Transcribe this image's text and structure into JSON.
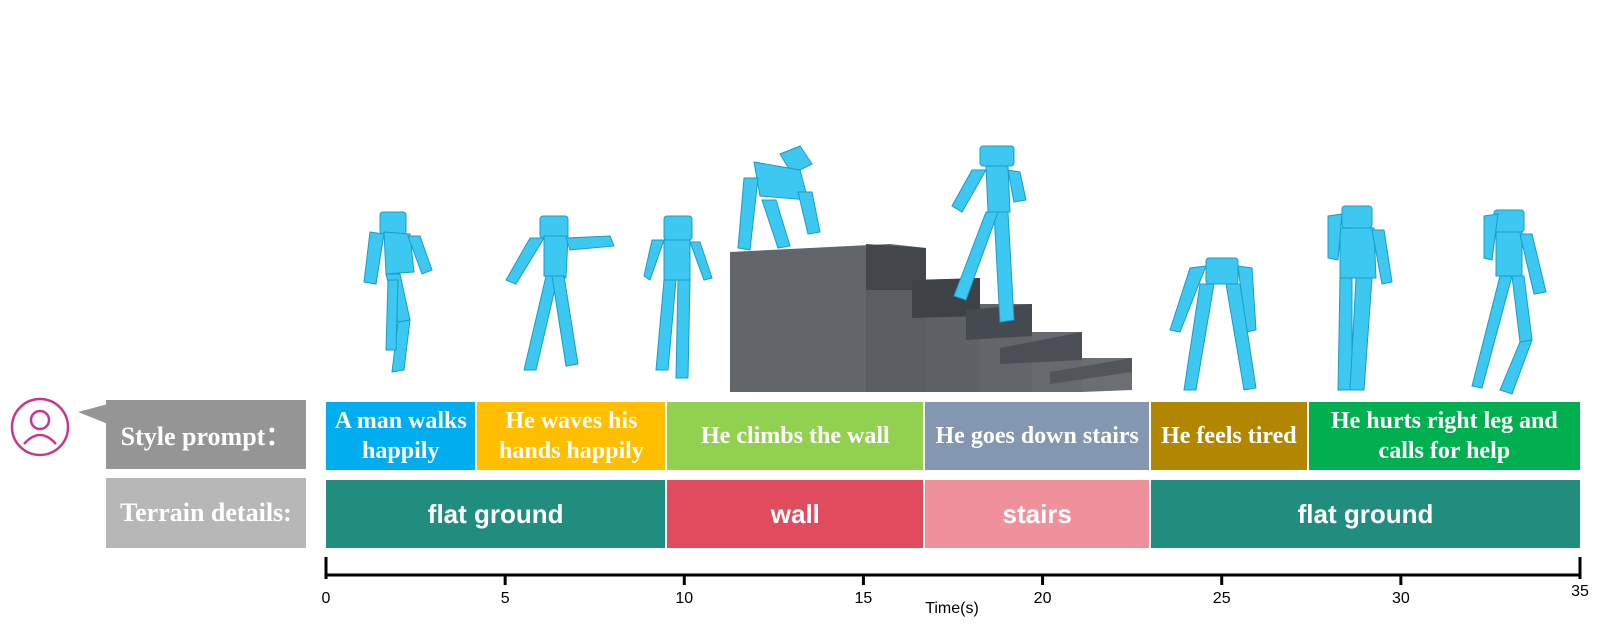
{
  "headers": {
    "style_prompt": "Style prompt：",
    "terrain_details": "Terrain details:"
  },
  "icons": {
    "user": "user-icon"
  },
  "colors": {
    "header_style": "#959595",
    "header_terrain": "#b7b7b7",
    "style_blue": "#00adee",
    "style_yellow": "#ffbf00",
    "style_green_light": "#92d050",
    "style_gray_blue": "#8497b0",
    "style_olive": "#b38600",
    "style_green": "#00b050",
    "terrain_teal": "#218d7e",
    "terrain_red": "#e04b5e",
    "terrain_pink": "#f0909a",
    "figure": "#3cc8f0",
    "stairs": "#62666a"
  },
  "timeline": {
    "style_prompts": [
      {
        "text": "A man walks happily",
        "start": 0,
        "end": 4.2,
        "color": "#00adee"
      },
      {
        "text": "He waves his hands happily",
        "start": 4.2,
        "end": 9.5,
        "color": "#ffbf00"
      },
      {
        "text": "He climbs the wall",
        "start": 9.5,
        "end": 16.7,
        "color": "#92d050"
      },
      {
        "text": "He goes down stairs",
        "start": 16.7,
        "end": 23.0,
        "color": "#8497b0"
      },
      {
        "text": "He feels tired",
        "start": 23.0,
        "end": 27.4,
        "color": "#b38600"
      },
      {
        "text": "He hurts right leg and calls for help",
        "start": 27.4,
        "end": 35,
        "color": "#00b050"
      }
    ],
    "terrain": [
      {
        "text": "flat ground",
        "start": 0,
        "end": 9.5,
        "color": "#218d7e"
      },
      {
        "text": "wall",
        "start": 9.5,
        "end": 16.7,
        "color": "#e04b5e"
      },
      {
        "text": "stairs",
        "start": 16.7,
        "end": 23.0,
        "color": "#f0909a"
      },
      {
        "text": "flat ground",
        "start": 23.0,
        "end": 35,
        "color": "#218d7e"
      }
    ],
    "axis": {
      "min": 0,
      "max": 35,
      "ticks": [
        0,
        5,
        10,
        15,
        20,
        25,
        30,
        35
      ],
      "label": "Time(s)"
    }
  }
}
